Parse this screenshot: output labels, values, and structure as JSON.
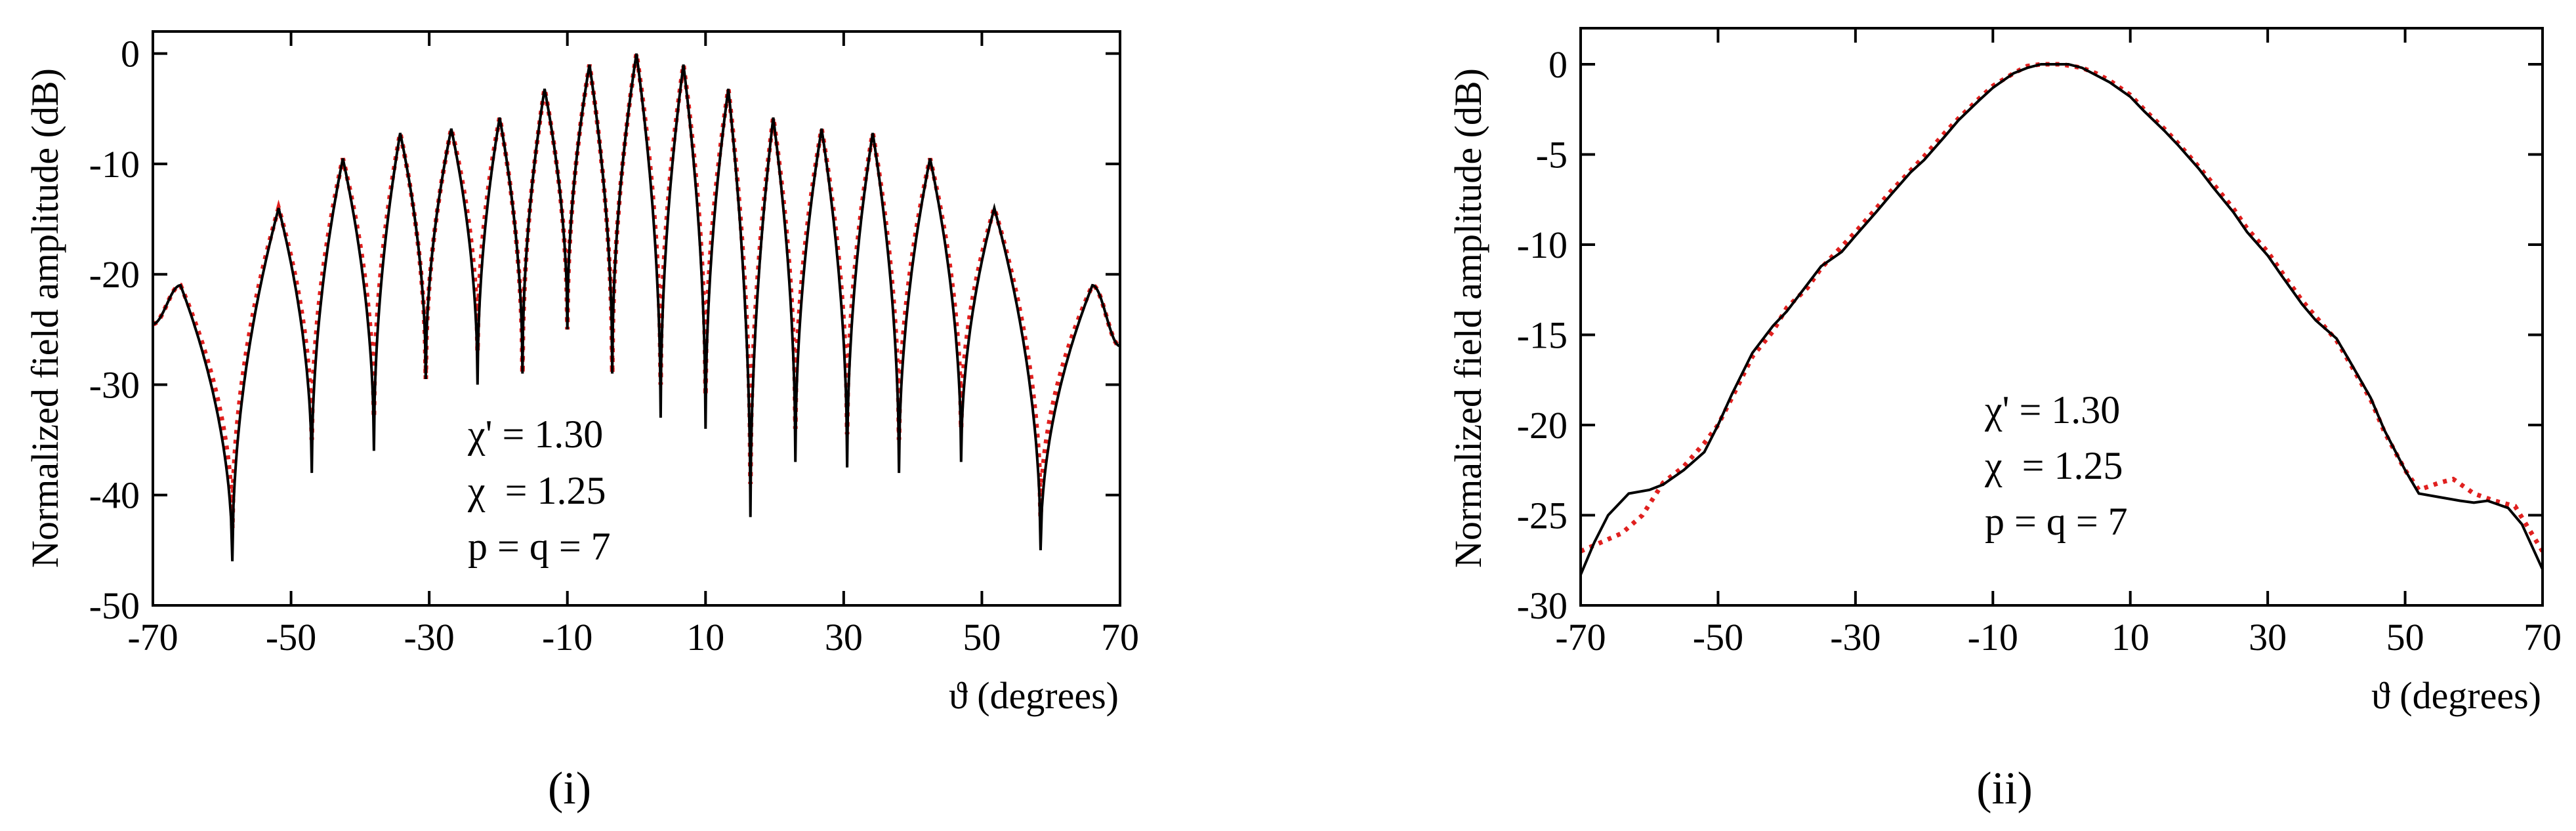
{
  "chart_data": [
    {
      "type": "line",
      "panel_label": "(i)",
      "xlabel": "ϑ (degrees)",
      "ylabel": "Normalized field amplitude (dB)",
      "xlim": [
        -70,
        70
      ],
      "ylim": [
        -50,
        2
      ],
      "xticks": [
        -70,
        -50,
        -30,
        -10,
        10,
        30,
        50,
        70
      ],
      "xtick_labels": [
        "-70",
        "-50",
        "-30",
        "-10",
        "10",
        "30",
        "50",
        "70"
      ],
      "yticks": [
        0,
        -10,
        -20,
        -30,
        -40,
        -50
      ],
      "ytick_labels": [
        "0",
        "-10",
        "-20",
        "-30",
        "-40",
        "-50"
      ],
      "annotations": [
        "χ' = 1.30",
        "χ  = 1.25",
        "p = q = 7"
      ],
      "pattern": {
        "nulls_deg": [
          -58.5,
          -47,
          -38,
          -30.5,
          -23,
          -16.5,
          -10,
          -3.5,
          3.5,
          10,
          16.5,
          23,
          30.5,
          38,
          47,
          58.5
        ],
        "null_depths_db": [
          -46,
          -38,
          -36,
          -29.5,
          -30,
          -29,
          -25,
          -29,
          -33,
          -34,
          -42,
          -37,
          -37.5,
          -38,
          -37,
          -45
        ],
        "lobes_deg": [
          -66,
          -51.8,
          -42.5,
          -34.2,
          -26.8,
          -19.8,
          -13.3,
          -6.8,
          0,
          6.8,
          13.3,
          19.8,
          26.8,
          34.2,
          42.5,
          51.8,
          66
        ],
        "lobe_peaks_db": [
          -21,
          -14,
          -9.5,
          -7.2,
          -6.8,
          -5.8,
          -3.2,
          -1,
          0,
          -1,
          -3.2,
          -5.8,
          -6.8,
          -7.2,
          -9.5,
          -14,
          -21
        ],
        "edge_values_db": [
          -24.5,
          -26.5
        ]
      },
      "series": [
        {
          "name": "solid",
          "color": "#000000",
          "style": "solid"
        },
        {
          "name": "dotted",
          "color": "#e0201f",
          "style": "dotted"
        }
      ]
    },
    {
      "type": "line",
      "panel_label": "(ii)",
      "xlabel": "ϑ (degrees)",
      "ylabel": "Normalized field amplitude (dB)",
      "xlim": [
        -70,
        70
      ],
      "ylim": [
        -30,
        2
      ],
      "xticks": [
        -70,
        -50,
        -30,
        -10,
        10,
        30,
        50,
        70
      ],
      "xtick_labels": [
        "-70",
        "-50",
        "-30",
        "-10",
        "10",
        "30",
        "50",
        "70"
      ],
      "yticks": [
        0,
        -5,
        -10,
        -15,
        -20,
        -25,
        -30
      ],
      "ytick_labels": [
        "0",
        "-5",
        "-10",
        "-15",
        "-20",
        "-25",
        "-30"
      ],
      "annotations": [
        "χ' = 1.30",
        "χ  = 1.25",
        "p = q = 7"
      ],
      "series": [
        {
          "name": "solid",
          "color": "#000000",
          "style": "solid",
          "x": [
            -70,
            -68,
            -66,
            -63,
            -60,
            -58,
            -55,
            -52,
            -50,
            -48,
            -45,
            -42,
            -40,
            -37,
            -35,
            -32,
            -30,
            -27,
            -25,
            -22,
            -20,
            -17,
            -15,
            -12,
            -10,
            -7,
            -5,
            -3,
            -1,
            0,
            1,
            3,
            5,
            7,
            10,
            12,
            15,
            17,
            20,
            22,
            25,
            27,
            30,
            32,
            35,
            37,
            40,
            42,
            45,
            47,
            50,
            52,
            55,
            58,
            60,
            62,
            65,
            67,
            70
          ],
          "y": [
            -28.3,
            -26.5,
            -25,
            -23.8,
            -23.6,
            -23.3,
            -22.5,
            -21.5,
            -20,
            -18.3,
            -16,
            -14.5,
            -13.7,
            -12.2,
            -11.2,
            -10.4,
            -9.5,
            -8.2,
            -7.3,
            -6,
            -5.3,
            -4,
            -3.1,
            -2,
            -1.3,
            -0.5,
            -0.2,
            0,
            0,
            0,
            0,
            -0.2,
            -0.6,
            -1,
            -1.8,
            -2.6,
            -3.7,
            -4.5,
            -5.8,
            -6.8,
            -8.2,
            -9.3,
            -10.6,
            -11.7,
            -13.3,
            -14.2,
            -15.2,
            -16.5,
            -18.5,
            -20.3,
            -22.5,
            -23.8,
            -24,
            -24.2,
            -24.3,
            -24.2,
            -24.6,
            -25.5,
            -28
          ]
        },
        {
          "name": "dotted",
          "color": "#e0201f",
          "style": "dotted",
          "x": [
            -70,
            -67,
            -64,
            -61,
            -58,
            -55,
            -52,
            -50,
            -48,
            -45,
            -42,
            -40,
            -37,
            -35,
            -32,
            -30,
            -27,
            -25,
            -22,
            -20,
            -17,
            -15,
            -12,
            -10,
            -7,
            -5,
            -3,
            0,
            3,
            5,
            7,
            10,
            12,
            15,
            17,
            20,
            22,
            25,
            27,
            30,
            32,
            35,
            37,
            40,
            42,
            45,
            47,
            50,
            52,
            55,
            57,
            60,
            63,
            66,
            70
          ],
          "y": [
            -27,
            -26.5,
            -26,
            -25,
            -23.2,
            -22.3,
            -21,
            -20,
            -18.5,
            -16.2,
            -14.8,
            -13.5,
            -12.4,
            -11.3,
            -10.1,
            -9.3,
            -8,
            -7.1,
            -5.9,
            -5.1,
            -3.8,
            -3,
            -1.9,
            -1.2,
            -0.5,
            -0.1,
            0,
            0,
            -0.2,
            -0.5,
            -0.9,
            -1.7,
            -2.5,
            -3.6,
            -4.4,
            -5.7,
            -6.6,
            -8,
            -9.1,
            -10.4,
            -11.5,
            -13.1,
            -14,
            -15.3,
            -16.6,
            -18.6,
            -20.4,
            -22.5,
            -23.6,
            -23.2,
            -23,
            -23.8,
            -24.2,
            -24.5,
            -27
          ]
        }
      ]
    }
  ]
}
